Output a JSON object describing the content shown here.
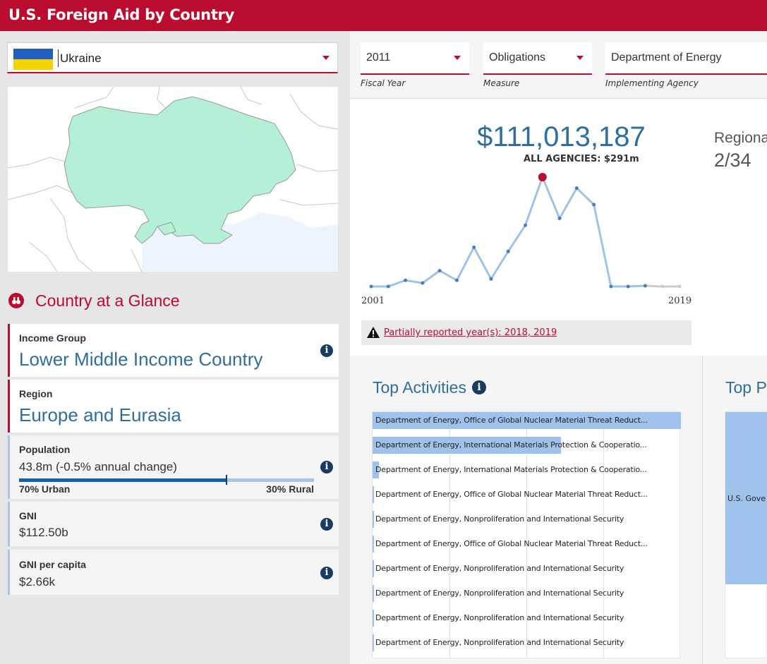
{
  "app": {
    "title": "U.S. Foreign Aid by Country"
  },
  "country_select": {
    "value": "Ukraine"
  },
  "glance": {
    "title": "Country at a Glance",
    "income": {
      "label": "Income Group",
      "value": "Lower Middle Income Country"
    },
    "region": {
      "label": "Region",
      "value": "Europe and Eurasia"
    },
    "population": {
      "label": "Population",
      "value": "43.8m (-0.5% annual change)",
      "urban": "70% Urban",
      "rural": "30% Rural",
      "urban_share": 0.7
    },
    "gni": {
      "label": "GNI",
      "value": "$112.50b"
    },
    "gni_pc": {
      "label": "GNI per capita",
      "value": "$2.66k"
    }
  },
  "filters": {
    "fiscal_year": {
      "value": "2011",
      "label": "Fiscal Year"
    },
    "measure": {
      "value": "Obligations",
      "label": "Measure"
    },
    "agency": {
      "value": "Department of Energy",
      "label": "Implementing Agency"
    }
  },
  "summary": {
    "amount": "$111,013,187",
    "all_agencies": "ALL AGENCIES: $291m",
    "regional_label": "Regiona",
    "regional_rank": "2/34",
    "warning": "Partially reported year(s): 2018, 2019"
  },
  "chart_data": {
    "type": "line",
    "x": [
      2001,
      2002,
      2003,
      2004,
      2005,
      2006,
      2007,
      2008,
      2009,
      2010,
      2011,
      2012,
      2013,
      2014,
      2015,
      2016,
      2017,
      2018,
      2019
    ],
    "y": [
      0.5,
      0.5,
      5,
      3,
      12,
      5,
      29,
      6,
      26,
      45,
      80,
      50,
      72,
      60,
      0.5,
      0.5,
      1,
      0.5,
      0.5
    ],
    "highlight_x": 2011,
    "partial_x": [
      2018,
      2019
    ],
    "xtick_labels": [
      "2001",
      "2019"
    ],
    "colors": {
      "line": "#9fc2ea",
      "point": "#4a7db8",
      "highlight": "#ba0c2f",
      "partial": "#cccccc"
    }
  },
  "top_activities": {
    "title": "Top Activities",
    "items": [
      {
        "label": "Department of Energy, Office of Global Nuclear Material Threat Reduct...",
        "share": 1.0
      },
      {
        "label": "Department of Energy, International Materials Protection & Cooperatio...",
        "share": 0.61
      },
      {
        "label": "Department of Energy, International Materials Protection & Cooperatio...",
        "share": 0.02
      },
      {
        "label": "Department of Energy, Office of Global Nuclear Material Threat Reduct...",
        "share": 0.005
      },
      {
        "label": "Department of Energy, Nonproliferation and International Security",
        "share": 0.005
      },
      {
        "label": "Department of Energy, Office of Global Nuclear Material Threat Reduct...",
        "share": 0.004
      },
      {
        "label": "Department of Energy, Nonproliferation and International Security",
        "share": 0.004
      },
      {
        "label": "Department of Energy, Nonproliferation and International Security",
        "share": 0.003
      },
      {
        "label": "Department of Energy, Nonproliferation and International Security",
        "share": 0.003
      },
      {
        "label": "Department of Energy, Nonproliferation and International Security",
        "share": 0.003
      }
    ]
  },
  "top_partners": {
    "title": "Top P",
    "item_label": "U.S. Gove"
  },
  "colors": {
    "brand": "#ba0c2f",
    "accent_blue": "#2f6e9e",
    "bar": "#9fc2ea"
  }
}
